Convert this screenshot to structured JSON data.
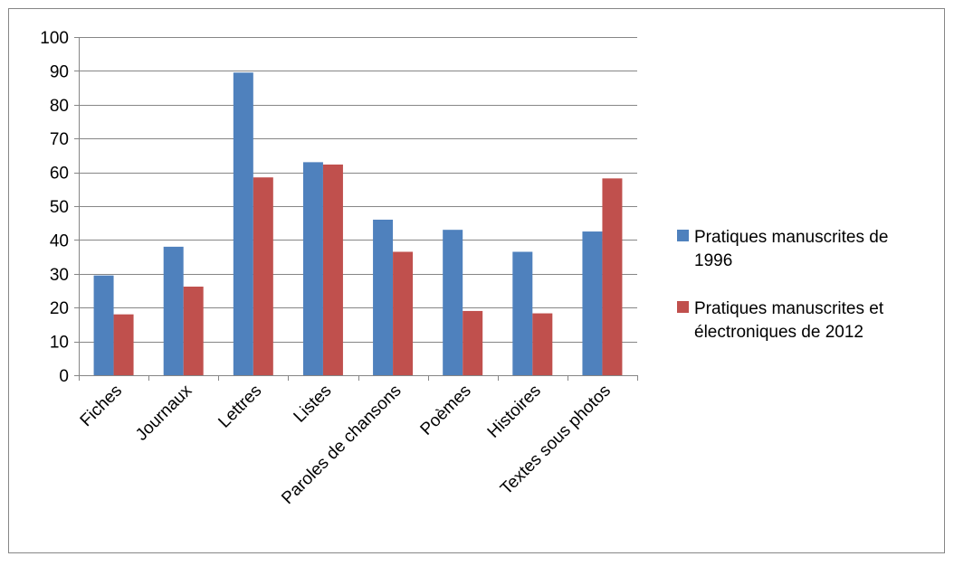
{
  "chart_data": {
    "type": "bar",
    "title": "",
    "xlabel": "",
    "ylabel": "",
    "categories": [
      "Fiches",
      "Journaux",
      "Lettres",
      "Listes",
      "Paroles de chansons",
      "Poèmes",
      "Histoires",
      "Textes sous photos"
    ],
    "series": [
      {
        "name": "Pratiques manuscrites de 1996",
        "legend_lines": [
          "Pratiques manuscrites de",
          "1996"
        ],
        "color": "#4F81BD",
        "values": [
          29.5,
          38,
          89.5,
          63,
          46,
          43,
          36.5,
          42.5
        ]
      },
      {
        "name": "Pratiques manuscrites et électroniques de 2012",
        "legend_lines": [
          "Pratiques manuscrites et",
          "électroniques de 2012"
        ],
        "color": "#C0504D",
        "values": [
          18,
          26.2,
          58.5,
          62.3,
          36.5,
          19,
          18.3,
          58.2
        ]
      }
    ],
    "ylim": [
      0,
      100
    ],
    "yticks": [
      "0",
      "10",
      "20",
      "30",
      "40",
      "50",
      "60",
      "70",
      "80",
      "90",
      "100"
    ],
    "ytick_values": [
      0,
      10,
      20,
      30,
      40,
      50,
      60,
      70,
      80,
      90,
      100
    ],
    "grid": true,
    "gridline_color": "#868686",
    "legend_position": "right"
  }
}
